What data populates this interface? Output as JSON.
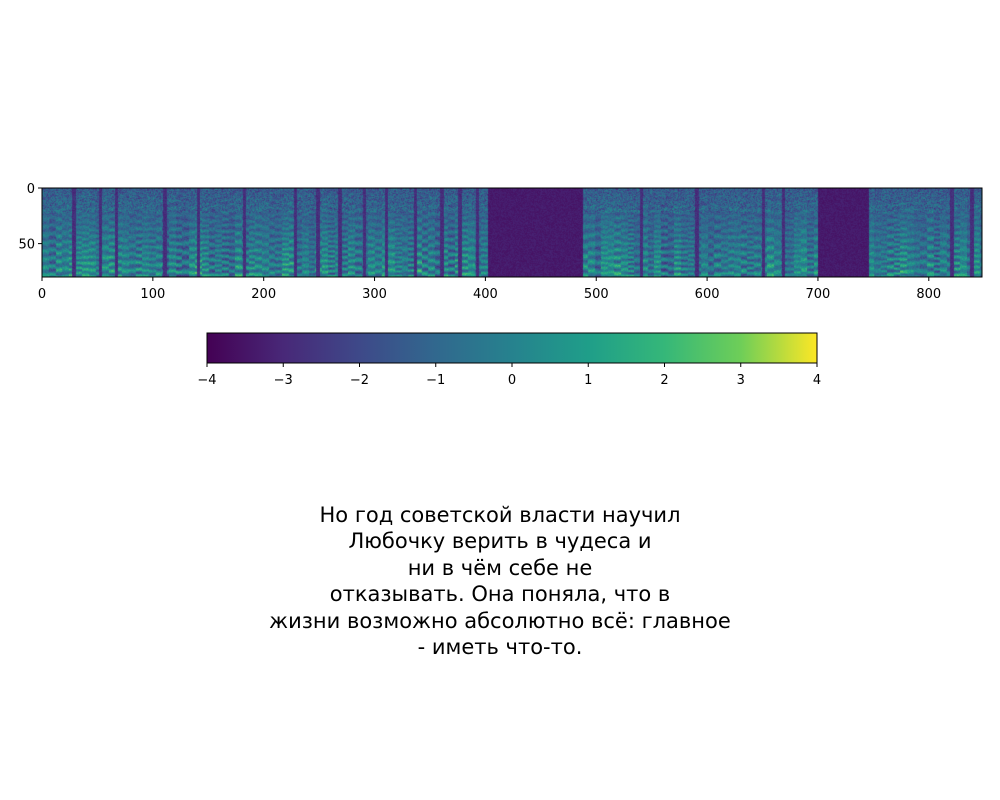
{
  "chart_data": [
    {
      "type": "heatmap",
      "title": "",
      "xlabel": "",
      "ylabel": "",
      "xlim": [
        0,
        848
      ],
      "ylim": [
        80,
        0
      ],
      "frames": 848,
      "mel_bins": 80,
      "x_ticks": [
        "0",
        "100",
        "200",
        "300",
        "400",
        "500",
        "600",
        "700",
        "800"
      ],
      "y_ticks": [
        "0",
        "50"
      ],
      "silent_spans": [
        [
          402,
          488
        ],
        [
          700,
          746
        ]
      ],
      "pause_frames": [
        28,
        52,
        66,
        110,
        140,
        182,
        228,
        248,
        268,
        290,
        310,
        336,
        360,
        376,
        392,
        540,
        590,
        650,
        668,
        820,
        838
      ],
      "colormap": "viridis",
      "value_range": [
        -4,
        4
      ]
    },
    {
      "type": "colorbar",
      "colormap": "viridis",
      "range": [
        -4,
        4
      ],
      "ticks": [
        "−4",
        "−3",
        "−2",
        "−1",
        "0",
        "1",
        "2",
        "3",
        "4"
      ]
    }
  ],
  "caption": {
    "lines": [
      "Но год советской власти научил",
      "Любочку верить в чудеса и",
      "ни в чём себе не",
      "отказывать. Она поняла, что в",
      "жизни возможно абсолютно всё: главное",
      "- иметь что-то."
    ]
  },
  "colors": {
    "viridis_dark": "#440154",
    "viridis_mid": "#21918c",
    "viridis_bright": "#fde725"
  }
}
